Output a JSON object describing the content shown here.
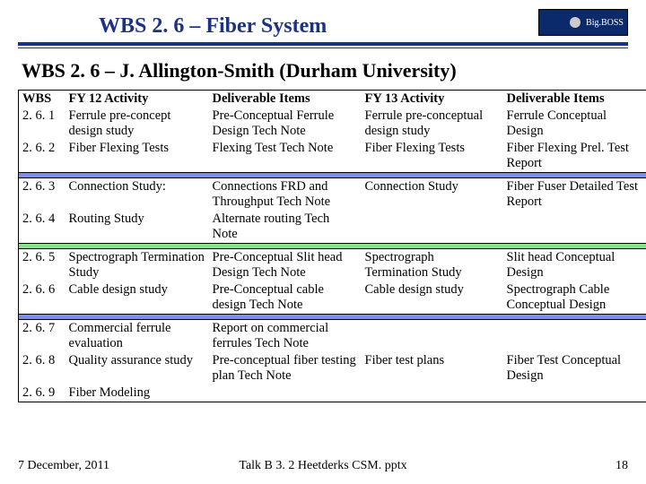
{
  "logo_text": "Big.BOSS",
  "title": "WBS 2. 6 – Fiber System",
  "subtitle": "WBS 2. 6 – J. Allington-Smith (Durham University)",
  "columns": [
    "WBS",
    "FY 12 Activity",
    "Deliverable Items",
    "FY 13 Activity",
    "Deliverable Items"
  ],
  "rows": [
    {
      "c": [
        "2. 6. 1",
        "Ferrule pre-concept design study",
        "Pre-Conceptual Ferrule Design Tech Note",
        "Ferrule pre-conceptual design study",
        "Ferrule Conceptual Design"
      ]
    },
    {
      "c": [
        "2. 6. 2",
        "Fiber Flexing Tests",
        "Flexing Test Tech Note",
        "Fiber Flexing Tests",
        "Fiber Flexing Prel. Test Report"
      ]
    },
    {
      "c": [
        "2. 6. 3",
        "Connection Study:",
        "Connections FRD and Throughput Tech Note",
        "Connection Study",
        "Fiber Fuser Detailed Test Report"
      ]
    },
    {
      "c": [
        "2. 6. 4",
        "Routing Study",
        "Alternate routing Tech Note",
        "",
        ""
      ]
    },
    {
      "c": [
        "2. 6. 5",
        "Spectrograph Termination Study",
        "Pre-Conceptual Slit head Design Tech Note",
        "Spectrograph Termination Study",
        "Slit head Conceptual Design"
      ]
    },
    {
      "c": [
        "2. 6. 6",
        "Cable design study",
        "Pre-Conceptual cable design Tech Note",
        "Cable design study",
        "Spectrograph Cable Conceptual Design"
      ]
    },
    {
      "c": [
        "2. 6. 7",
        "Commercial ferrule evaluation",
        "Report on commercial ferrules Tech Note",
        "",
        ""
      ]
    },
    {
      "c": [
        "2. 6. 8",
        "Quality assurance study",
        "Pre-conceptual fiber testing plan Tech Note",
        "Fiber test plans",
        "Fiber Test Conceptual Design"
      ]
    },
    {
      "c": [
        "2. 6. 9",
        "Fiber Modeling",
        "",
        "",
        ""
      ]
    }
  ],
  "footer_left": "7 December,  2011",
  "footer_center": "Talk B 3. 2  Heetderks  CSM. pptx",
  "page_number": "18"
}
